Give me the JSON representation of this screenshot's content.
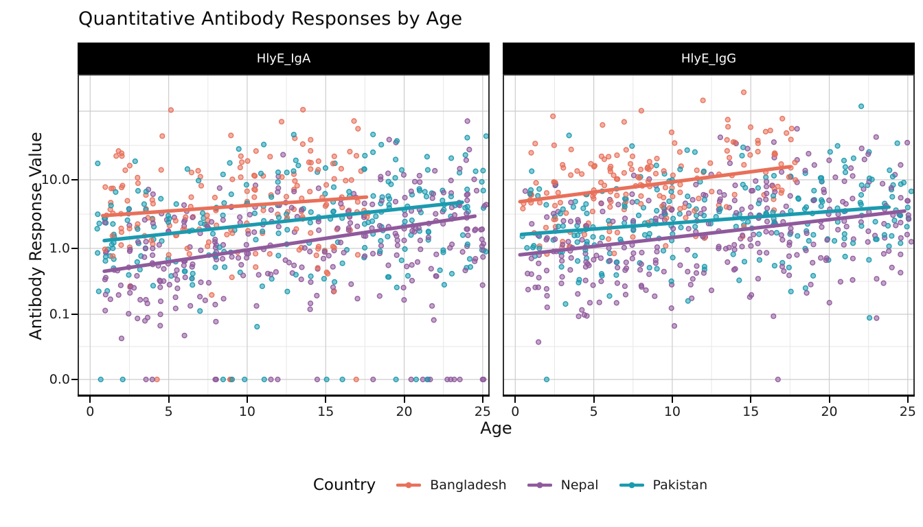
{
  "title": "Quantitative Antibody Responses by Age",
  "x_axis": {
    "label": "Age",
    "ticks": [
      "0",
      "5",
      "10",
      "15",
      "20",
      "25"
    ],
    "tick_values": [
      0,
      5,
      10,
      15,
      20,
      25
    ],
    "minor_values": [
      2.5,
      7.5,
      12.5,
      17.5,
      22.5
    ]
  },
  "y_axis": {
    "label": "Antibody Response Value",
    "ticks": [
      "0.0",
      "0.1",
      "1.0",
      "10.0"
    ],
    "tick_values": [
      0,
      0.1,
      1,
      10
    ]
  },
  "legend": {
    "title": "Country",
    "entries": [
      {
        "label": "Bangladesh",
        "color": "#E8705A"
      },
      {
        "label": "Nepal",
        "color": "#8F5A9C"
      },
      {
        "label": "Pakistan",
        "color": "#1B9AAF"
      }
    ]
  },
  "colors": {
    "strip_bg": "#000000",
    "strip_text": "#ffffff",
    "grid_major": "#cccccc",
    "grid_minor": "#e7e7e7",
    "panel_border": "#2f2f2f",
    "axis_line": "#000000"
  },
  "chart_data": {
    "type": "scatter",
    "title": "Quantitative Antibody Responses by Age",
    "xlabel": "Age",
    "ylabel": "Antibody Response Value",
    "x_range": [
      0,
      25
    ],
    "y_scale": "pseudo-log10, labeled ticks at 0.0, 0.1, 1.0, 10.0",
    "grid": "major and minor gridlines on",
    "legend_position": "bottom",
    "facets": [
      {
        "label": "HlyE_IgA",
        "series": [
          {
            "name": "Bangladesh",
            "color": "#E8705A",
            "n": 175,
            "age_range": [
              0.5,
              18
            ],
            "trend_x": [
              0.8,
              17.6
            ],
            "trend_y": [
              3.0,
              5.6
            ],
            "sd_log10": 0.55,
            "zero_frac": 0.01,
            "seed": 11
          },
          {
            "name": "Nepal",
            "color": "#8F5A9C",
            "n": 310,
            "age_range": [
              0.5,
              25.3
            ],
            "trend_x": [
              0.9,
              24.5
            ],
            "trend_y": [
              0.45,
              2.95
            ],
            "sd_log10": 0.56,
            "zero_frac": 0.05,
            "seed": 12
          },
          {
            "name": "Pakistan",
            "color": "#1B9AAF",
            "n": 240,
            "age_range": [
              0.5,
              25.3
            ],
            "trend_x": [
              0.9,
              23.7
            ],
            "trend_y": [
              1.3,
              4.7
            ],
            "sd_log10": 0.5,
            "zero_frac": 0.035,
            "seed": 13
          }
        ]
      },
      {
        "label": "HlyE_IgG",
        "series": [
          {
            "name": "Bangladesh",
            "color": "#E8705A",
            "n": 175,
            "age_range": [
              0.5,
              18
            ],
            "trend_x": [
              0.3,
              17.5
            ],
            "trend_y": [
              4.8,
              15.5
            ],
            "sd_log10": 0.46,
            "zero_frac": 0.0,
            "seed": 21
          },
          {
            "name": "Nepal",
            "color": "#8F5A9C",
            "n": 310,
            "age_range": [
              0.5,
              25.3
            ],
            "trend_x": [
              0.3,
              24.8
            ],
            "trend_y": [
              0.8,
              3.5
            ],
            "sd_log10": 0.56,
            "zero_frac": 0.01,
            "seed": 22
          },
          {
            "name": "Pakistan",
            "color": "#1B9AAF",
            "n": 240,
            "age_range": [
              0.5,
              25.3
            ],
            "trend_x": [
              0.4,
              23.8
            ],
            "trend_y": [
              1.6,
              4.0
            ],
            "sd_log10": 0.5,
            "zero_frac": 0.004,
            "seed": 23
          }
        ]
      }
    ]
  }
}
